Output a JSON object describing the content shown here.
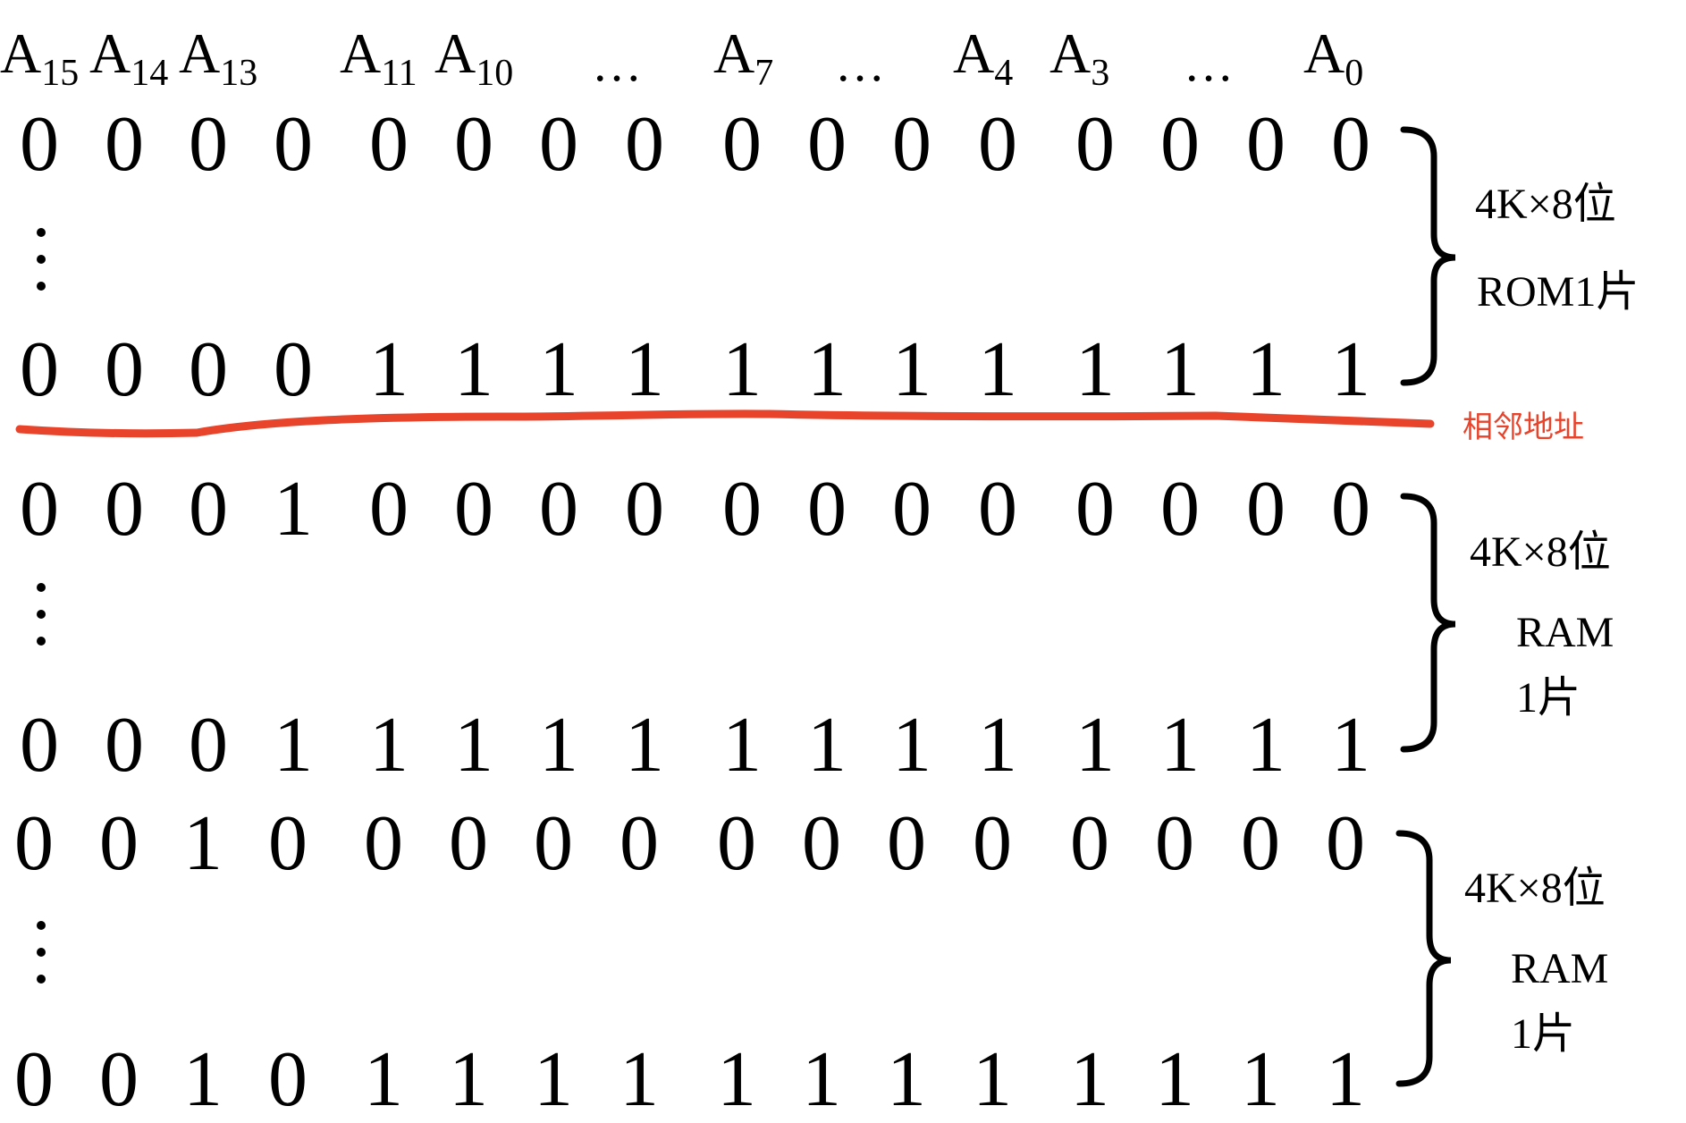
{
  "header": {
    "labels": [
      {
        "base": "A",
        "sub": "15"
      },
      {
        "base": "A",
        "sub": "14"
      },
      {
        "base": "A",
        "sub": "13"
      },
      {
        "base": "A",
        "sub": "11"
      },
      {
        "base": "A",
        "sub": "10"
      },
      {
        "base": "A",
        "sub": "7"
      },
      {
        "base": "A",
        "sub": "4"
      },
      {
        "base": "A",
        "sub": "3"
      },
      {
        "base": "A",
        "sub": "0"
      }
    ],
    "ellipsis": "…"
  },
  "rows": [
    {
      "bits": "0000000000000000"
    },
    {
      "bits": "0000111111111111"
    },
    {
      "bits": "0001000000000000"
    },
    {
      "bits": "0001111111111111"
    },
    {
      "bits": "0010000000000000"
    },
    {
      "bits": "0010111111111111"
    }
  ],
  "groups": [
    {
      "size": "4K×8位",
      "chip_lines": [
        "ROM1片"
      ]
    },
    {
      "size": "4K×8位",
      "chip_lines": [
        "RAM",
        "1片"
      ]
    },
    {
      "size": "4K×8位",
      "chip_lines": [
        "RAM",
        "1片"
      ]
    }
  ],
  "divider": {
    "label": "相邻地址",
    "color": "#e8432b"
  }
}
